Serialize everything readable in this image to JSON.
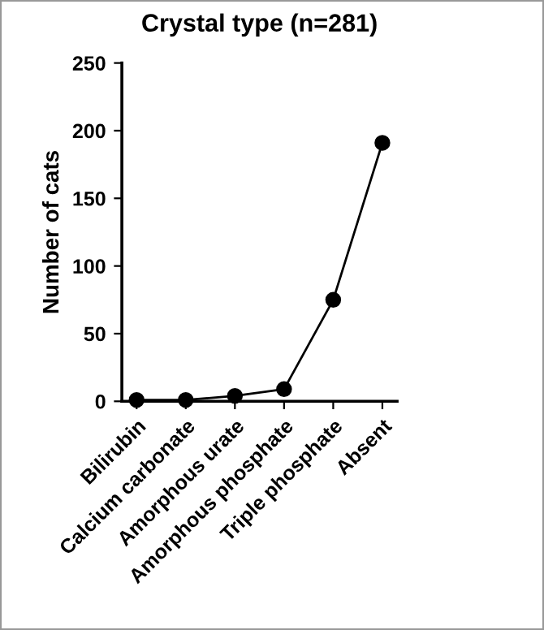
{
  "chart_data": {
    "type": "line",
    "title": "Crystal type (n=281)",
    "ylabel": "Number of cats",
    "categories": [
      "Bilirubin",
      "Calcium carbonate",
      "Amorphous urate",
      "Amorphous phosphate",
      "Triple phosphate",
      "Absent"
    ],
    "series": [
      {
        "color": "#000000",
        "values": [
          1,
          1,
          4,
          9,
          75,
          191
        ]
      }
    ],
    "ylim": [
      0,
      250
    ],
    "yticks": [
      0,
      50,
      100,
      150,
      200,
      250
    ],
    "marker": "circle",
    "line_style": "solid",
    "grid": false
  }
}
